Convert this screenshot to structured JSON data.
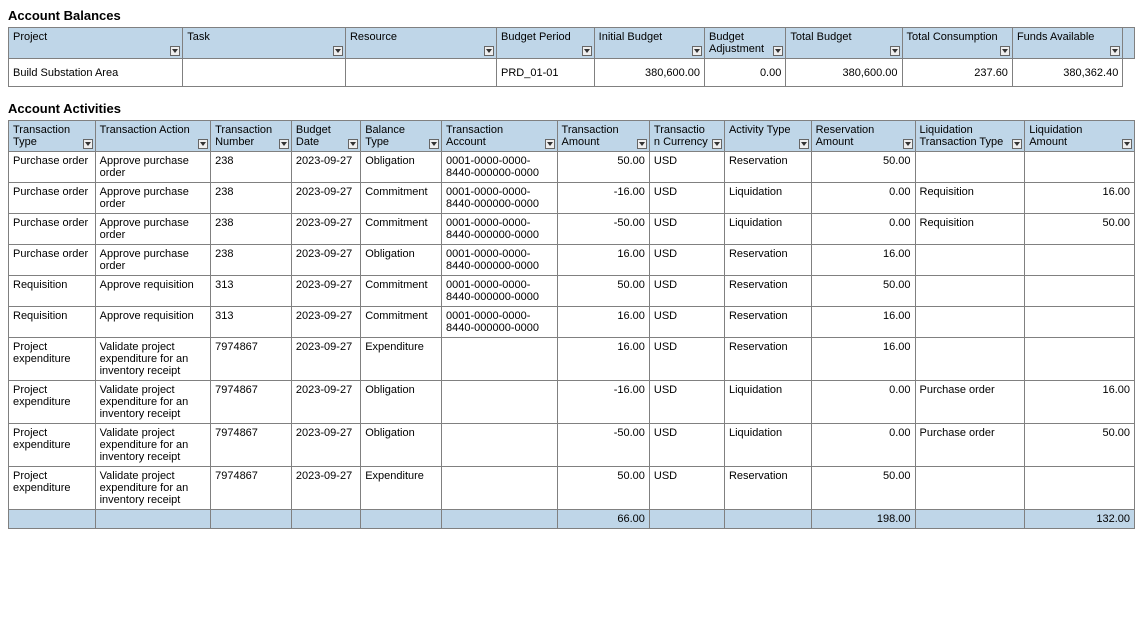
{
  "colors": {
    "header_bg": "#bfd6e8",
    "border": "#808080",
    "body_bg": "#ffffff",
    "text": "#000000"
  },
  "sections": {
    "balances_title": "Account Balances",
    "activities_title": "Account Activities"
  },
  "balances": {
    "headers": {
      "project": "Project",
      "task": "Task",
      "resource": "Resource",
      "budget_period": "Budget Period",
      "initial_budget": "Initial Budget",
      "budget_adjustment": "Budget Adjustment",
      "total_budget": "Total Budget",
      "total_consumption": "Total Consumption",
      "funds_available": "Funds Available"
    },
    "row": {
      "project": "Build Substation Area",
      "task": "",
      "resource": "",
      "budget_period": "PRD_01-01",
      "initial_budget": "380,600.00",
      "budget_adjustment": "0.00",
      "total_budget": "380,600.00",
      "total_consumption": "237.60",
      "funds_available": "380,362.40"
    }
  },
  "activities": {
    "headers": {
      "txn_type": "Transaction Type",
      "txn_action": "Transaction Action",
      "txn_number": "Transaction Number",
      "budget_date": "Budget Date",
      "balance_type": "Balance Type",
      "txn_account": "Transaction Account",
      "txn_amount": "Transaction Amount",
      "txn_currency": "Transaction Currency",
      "activity_type": "Activity Type",
      "res_amount": "Reservation Amount",
      "liq_txn_type": "Liquidation Transaction Type",
      "liq_amount": "Liquidation Amount"
    },
    "rows": [
      {
        "txn_type": "Purchase order",
        "txn_action": "Approve purchase order",
        "txn_number": "238",
        "budget_date": "2023-09-27",
        "balance_type": "Obligation",
        "txn_account": "0001-0000-0000-8440-000000-0000",
        "txn_amount": "50.00",
        "txn_currency": "USD",
        "activity_type": "Reservation",
        "res_amount": "50.00",
        "liq_txn_type": "",
        "liq_amount": ""
      },
      {
        "txn_type": "Purchase order",
        "txn_action": "Approve purchase order",
        "txn_number": "238",
        "budget_date": "2023-09-27",
        "balance_type": "Commitment",
        "txn_account": "0001-0000-0000-8440-000000-0000",
        "txn_amount": "-16.00",
        "txn_currency": "USD",
        "activity_type": "Liquidation",
        "res_amount": "0.00",
        "liq_txn_type": "Requisition",
        "liq_amount": "16.00"
      },
      {
        "txn_type": "Purchase order",
        "txn_action": "Approve purchase order",
        "txn_number": "238",
        "budget_date": "2023-09-27",
        "balance_type": "Commitment",
        "txn_account": "0001-0000-0000-8440-000000-0000",
        "txn_amount": "-50.00",
        "txn_currency": "USD",
        "activity_type": "Liquidation",
        "res_amount": "0.00",
        "liq_txn_type": "Requisition",
        "liq_amount": "50.00"
      },
      {
        "txn_type": "Purchase order",
        "txn_action": "Approve purchase order",
        "txn_number": "238",
        "budget_date": "2023-09-27",
        "balance_type": "Obligation",
        "txn_account": "0001-0000-0000-8440-000000-0000",
        "txn_amount": "16.00",
        "txn_currency": "USD",
        "activity_type": "Reservation",
        "res_amount": "16.00",
        "liq_txn_type": "",
        "liq_amount": ""
      },
      {
        "txn_type": "Requisition",
        "txn_action": "Approve requisition",
        "txn_number": "313",
        "budget_date": "2023-09-27",
        "balance_type": "Commitment",
        "txn_account": "0001-0000-0000-8440-000000-0000",
        "txn_amount": "50.00",
        "txn_currency": "USD",
        "activity_type": "Reservation",
        "res_amount": "50.00",
        "liq_txn_type": "",
        "liq_amount": ""
      },
      {
        "txn_type": "Requisition",
        "txn_action": "Approve requisition",
        "txn_number": "313",
        "budget_date": "2023-09-27",
        "balance_type": "Commitment",
        "txn_account": "0001-0000-0000-8440-000000-0000",
        "txn_amount": "16.00",
        "txn_currency": "USD",
        "activity_type": "Reservation",
        "res_amount": "16.00",
        "liq_txn_type": "",
        "liq_amount": ""
      },
      {
        "txn_type": "Project expenditure",
        "txn_action": "Validate project expenditure for an inventory receipt",
        "txn_number": "7974867",
        "budget_date": "2023-09-27",
        "balance_type": "Expenditure",
        "txn_account": "",
        "txn_amount": "16.00",
        "txn_currency": "USD",
        "activity_type": "Reservation",
        "res_amount": "16.00",
        "liq_txn_type": "",
        "liq_amount": ""
      },
      {
        "txn_type": "Project expenditure",
        "txn_action": "Validate project expenditure for an inventory receipt",
        "txn_number": "7974867",
        "budget_date": "2023-09-27",
        "balance_type": "Obligation",
        "txn_account": "",
        "txn_amount": "-16.00",
        "txn_currency": "USD",
        "activity_type": "Liquidation",
        "res_amount": "0.00",
        "liq_txn_type": "Purchase order",
        "liq_amount": "16.00"
      },
      {
        "txn_type": "Project expenditure",
        "txn_action": "Validate project expenditure for an inventory receipt",
        "txn_number": "7974867",
        "budget_date": "2023-09-27",
        "balance_type": "Obligation",
        "txn_account": "",
        "txn_amount": "-50.00",
        "txn_currency": "USD",
        "activity_type": "Liquidation",
        "res_amount": "0.00",
        "liq_txn_type": "Purchase order",
        "liq_amount": "50.00"
      },
      {
        "txn_type": "Project expenditure",
        "txn_action": "Validate project expenditure for an inventory receipt",
        "txn_number": "7974867",
        "budget_date": "2023-09-27",
        "balance_type": "Expenditure",
        "txn_account": "",
        "txn_amount": "50.00",
        "txn_currency": "USD",
        "activity_type": "Reservation",
        "res_amount": "50.00",
        "liq_txn_type": "",
        "liq_amount": ""
      }
    ],
    "totals": {
      "txn_amount": "66.00",
      "res_amount": "198.00",
      "liq_amount": "132.00"
    }
  },
  "col_widths": {
    "balances": [
      "150",
      "140",
      "130",
      "84",
      "95",
      "70",
      "100",
      "95",
      "95",
      "10"
    ],
    "activities": [
      "75",
      "100",
      "70",
      "60",
      "70",
      "100",
      "80",
      "65",
      "75",
      "90",
      "95",
      "95"
    ]
  }
}
